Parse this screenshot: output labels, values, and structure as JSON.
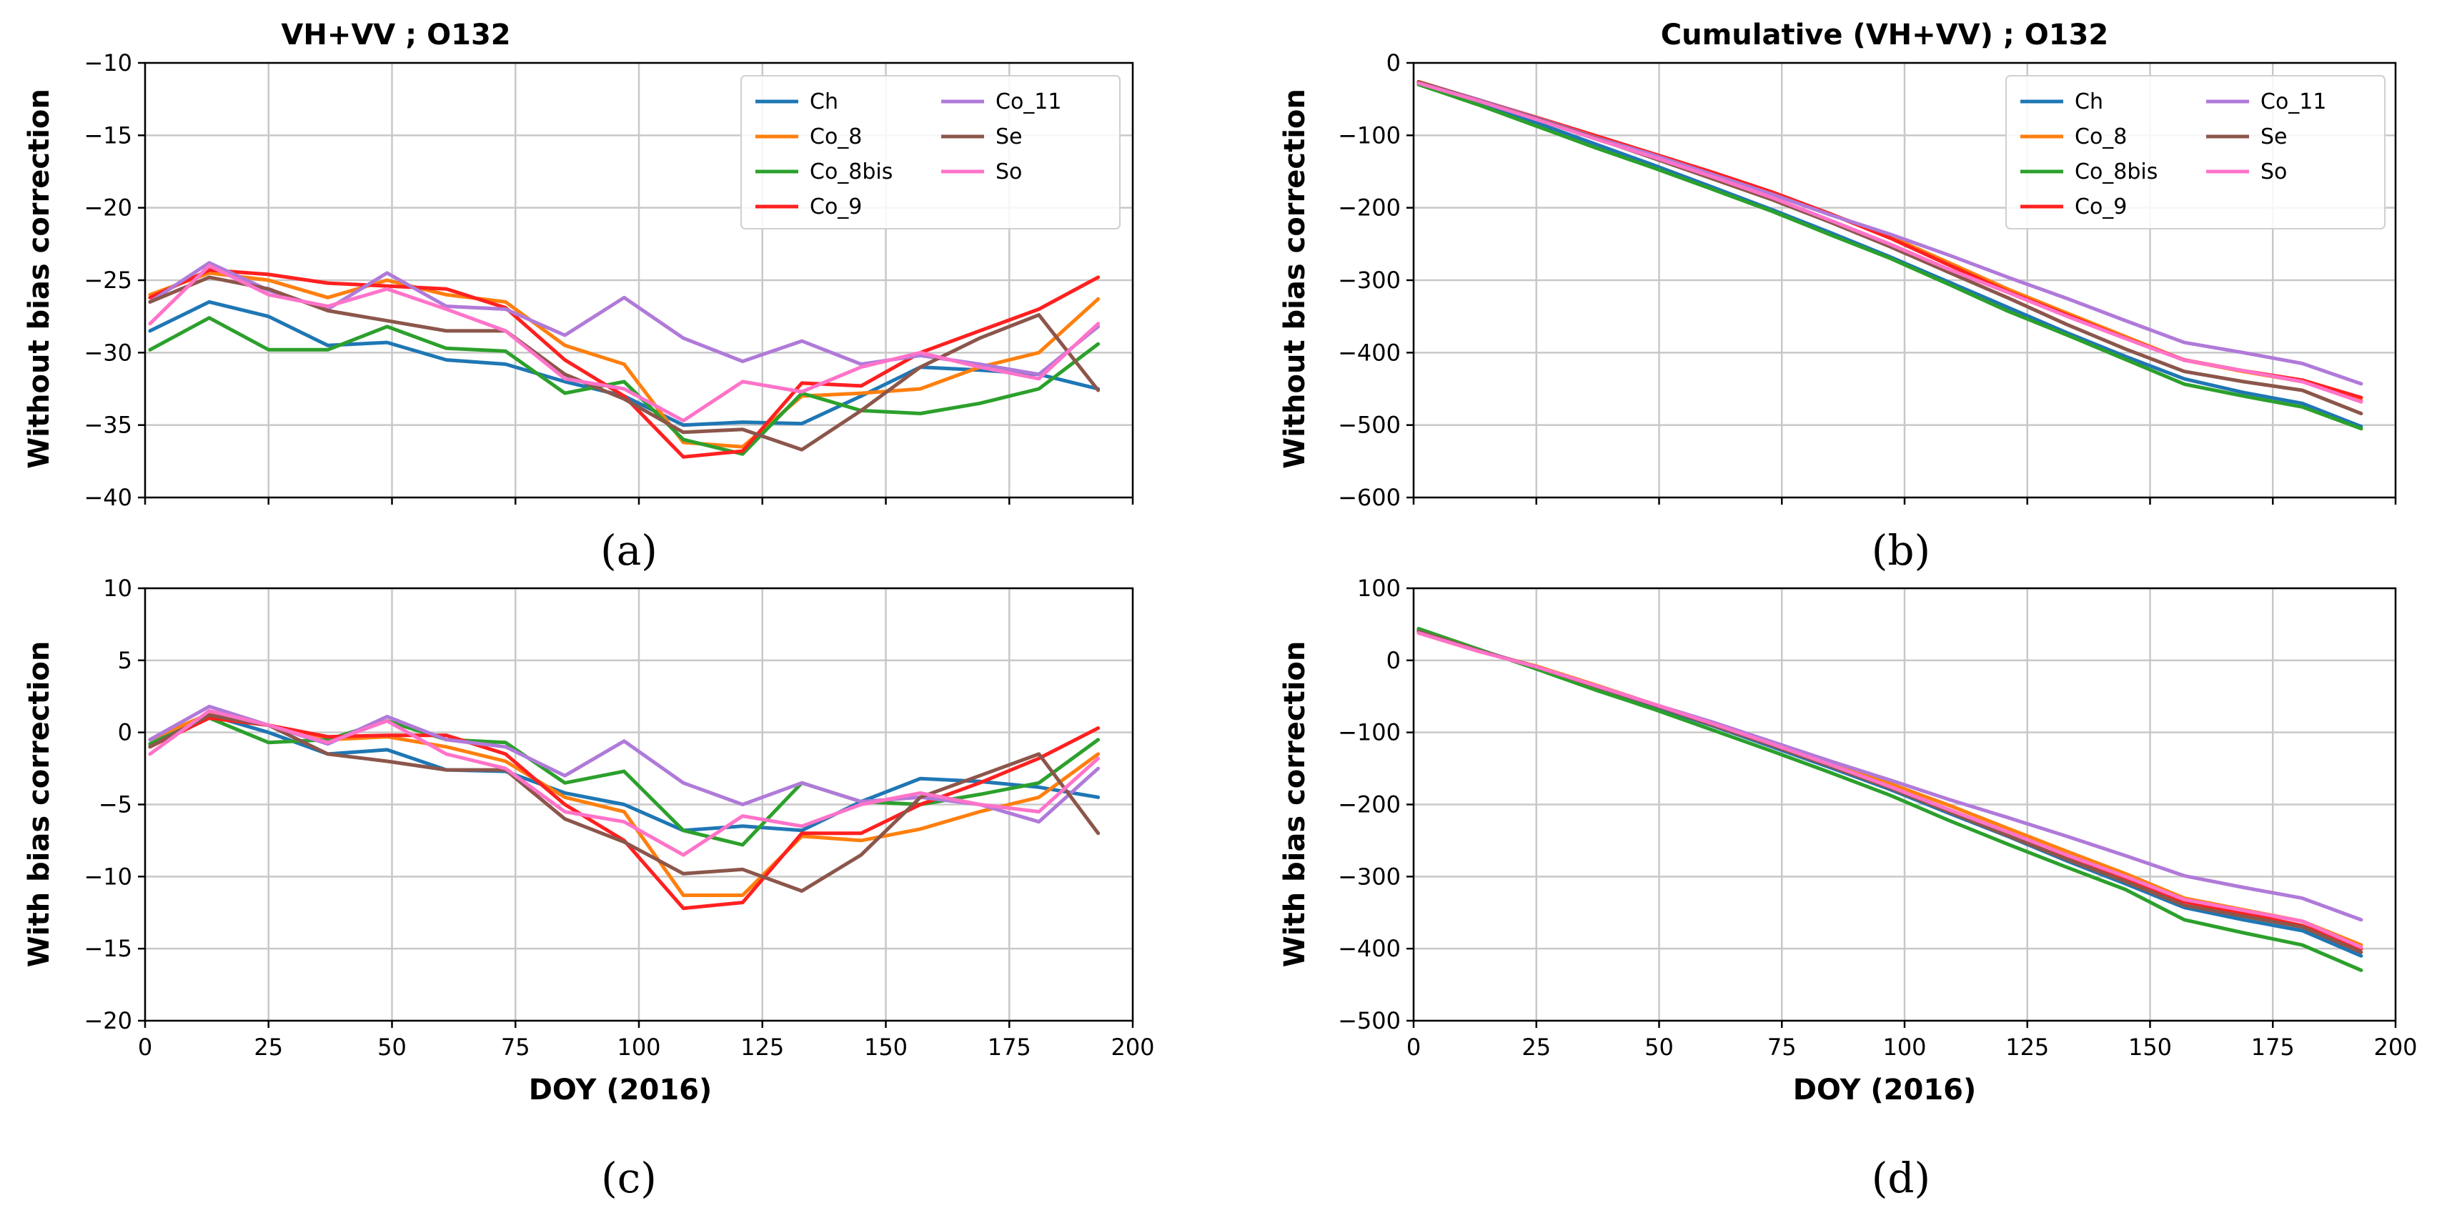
{
  "series_styles": [
    {
      "name": "Ch",
      "color": "#1f77b4"
    },
    {
      "name": "Co_8",
      "color": "#ff7f0e"
    },
    {
      "name": "Co_8bis",
      "color": "#2ca02c"
    },
    {
      "name": "Co_9",
      "color": "#ff2020"
    },
    {
      "name": "Co_11",
      "color": "#b07ad9"
    },
    {
      "name": "Se",
      "color": "#8c564b"
    },
    {
      "name": "So",
      "color": "#ff73c9"
    }
  ],
  "chart_data": [
    {
      "id": "a",
      "type": "line",
      "title": "VH+VV  ; O132",
      "xlabel": "",
      "ylabel": "Without bias correction",
      "caption": "(a)",
      "xlim": [
        0,
        200
      ],
      "ylim": [
        -40,
        -10
      ],
      "xticks": [
        0,
        25,
        50,
        75,
        100,
        125,
        150,
        175,
        200
      ],
      "yticks": [
        -40,
        -35,
        -30,
        -25,
        -20,
        -15,
        -10
      ],
      "show_xtick_labels": false,
      "legend": "top-right",
      "x": [
        1,
        13,
        25,
        37,
        49,
        61,
        73,
        85,
        97,
        109,
        121,
        133,
        145,
        157,
        169,
        181,
        193
      ],
      "series": [
        {
          "name": "Ch",
          "values": [
            -28.5,
            -26.5,
            -27.5,
            -29.5,
            -29.3,
            -30.5,
            -30.8,
            -32.0,
            -33.0,
            -35.0,
            -34.8,
            -34.9,
            -33.0,
            -31.0,
            -31.2,
            -31.5,
            -32.5
          ]
        },
        {
          "name": "Co_8",
          "values": [
            -26.0,
            -24.5,
            -25.0,
            -26.2,
            -25.0,
            -26.0,
            -26.5,
            -29.5,
            -30.8,
            -36.2,
            -36.5,
            -33.0,
            -32.8,
            -32.5,
            -31.0,
            -30.0,
            -26.3
          ]
        },
        {
          "name": "Co_8bis",
          "values": [
            -29.8,
            -27.6,
            -29.8,
            -29.8,
            -28.2,
            -29.7,
            -29.9,
            -32.8,
            -32.0,
            -36.0,
            -37.0,
            -32.8,
            -34.0,
            -34.2,
            -33.5,
            -32.5,
            -29.4
          ]
        },
        {
          "name": "Co_9",
          "values": [
            -26.2,
            -24.3,
            -24.6,
            -25.2,
            -25.4,
            -25.6,
            -26.9,
            -30.5,
            -33.0,
            -37.2,
            -36.8,
            -32.1,
            -32.3,
            -30.0,
            -28.5,
            -27.0,
            -24.8
          ]
        },
        {
          "name": "Co_11",
          "values": [
            -26.5,
            -23.8,
            -25.7,
            -27.0,
            -24.5,
            -26.8,
            -27.0,
            -28.8,
            -26.2,
            -29.0,
            -30.6,
            -29.2,
            -30.8,
            -30.2,
            -30.8,
            -31.5,
            -28.2
          ]
        },
        {
          "name": "Se",
          "values": [
            -26.5,
            -24.8,
            -25.6,
            -27.1,
            -27.8,
            -28.5,
            -28.5,
            -31.5,
            -33.2,
            -35.5,
            -35.3,
            -36.7,
            -34.0,
            -31.0,
            -29.0,
            -27.4,
            -32.6
          ]
        },
        {
          "name": "So",
          "values": [
            -28.0,
            -24.0,
            -26.0,
            -26.8,
            -25.6,
            -27.0,
            -28.5,
            -31.8,
            -32.5,
            -34.7,
            -32.0,
            -32.7,
            -31.0,
            -30.0,
            -31.0,
            -31.8,
            -28.0
          ]
        }
      ]
    },
    {
      "id": "b",
      "type": "line",
      "title": "Cumulative (VH+VV)  ; O132",
      "xlabel": "",
      "ylabel": "Without bias correction",
      "caption": "(b)",
      "xlim": [
        0,
        200
      ],
      "ylim": [
        -600,
        0
      ],
      "xticks": [
        0,
        25,
        50,
        75,
        100,
        125,
        150,
        175,
        200
      ],
      "yticks": [
        -600,
        -500,
        -400,
        -300,
        -200,
        -100,
        0
      ],
      "show_xtick_labels": false,
      "legend": "top-right",
      "x": [
        1,
        13,
        25,
        37,
        49,
        61,
        73,
        85,
        97,
        109,
        121,
        133,
        145,
        157,
        169,
        181,
        193
      ],
      "series": [
        {
          "name": "Ch",
          "values": [
            -28.5,
            -55.0,
            -82.5,
            -112.0,
            -141.3,
            -171.8,
            -202.6,
            -234.6,
            -267.6,
            -302.6,
            -337.4,
            -372.3,
            -405.3,
            -436.3,
            -455.0,
            -470.0,
            -502.0
          ]
        },
        {
          "name": "Co_8",
          "values": [
            -26.0,
            -50.5,
            -75.5,
            -101.7,
            -126.7,
            -152.7,
            -179.2,
            -208.7,
            -239.5,
            -275.7,
            -312.2,
            -345.2,
            -378.0,
            -410.5,
            -426.0,
            -440.0,
            -466.0
          ]
        },
        {
          "name": "Co_8bis",
          "values": [
            -29.8,
            -57.4,
            -87.2,
            -117.0,
            -145.2,
            -174.9,
            -204.8,
            -237.6,
            -269.6,
            -305.6,
            -342.6,
            -375.4,
            -409.4,
            -443.6,
            -460.0,
            -475.0,
            -505.0
          ]
        },
        {
          "name": "Co_9",
          "values": [
            -26.2,
            -50.5,
            -75.1,
            -100.3,
            -125.7,
            -151.3,
            -178.2,
            -208.7,
            -241.7,
            -278.9,
            -315.7,
            -347.8,
            -380.1,
            -410.1,
            -425.0,
            -438.0,
            -462.0
          ]
        },
        {
          "name": "Co_11",
          "values": [
            -26.5,
            -50.3,
            -76.0,
            -103.0,
            -127.5,
            -154.3,
            -181.3,
            -210.1,
            -236.3,
            -265.3,
            -295.9,
            -325.1,
            -355.9,
            -386.1,
            -400.0,
            -415.0,
            -443.0
          ]
        },
        {
          "name": "Se",
          "values": [
            -26.5,
            -51.3,
            -76.9,
            -104.0,
            -131.8,
            -160.3,
            -188.8,
            -220.3,
            -253.5,
            -289.0,
            -324.3,
            -361.0,
            -395.0,
            -426.0,
            -440.0,
            -452.0,
            -484.0
          ]
        },
        {
          "name": "So",
          "values": [
            -28.0,
            -52.0,
            -78.0,
            -104.8,
            -130.4,
            -157.4,
            -185.9,
            -217.7,
            -250.2,
            -284.9,
            -316.9,
            -349.6,
            -380.6,
            -410.6,
            -425.0,
            -440.0,
            -468.0
          ]
        }
      ]
    },
    {
      "id": "c",
      "type": "line",
      "title": "",
      "xlabel": "DOY (2016)",
      "ylabel": "With bias correction",
      "caption": "(c)",
      "xlim": [
        0,
        200
      ],
      "ylim": [
        -20,
        10
      ],
      "xticks": [
        0,
        25,
        50,
        75,
        100,
        125,
        150,
        175,
        200
      ],
      "yticks": [
        -20,
        -15,
        -10,
        -5,
        0,
        5,
        10
      ],
      "show_xtick_labels": true,
      "legend": "none",
      "x": [
        1,
        13,
        25,
        37,
        49,
        61,
        73,
        85,
        97,
        109,
        121,
        133,
        145,
        157,
        169,
        181,
        193
      ],
      "series": [
        {
          "name": "Ch",
          "values": [
            -0.8,
            1.2,
            0.0,
            -1.5,
            -1.2,
            -2.6,
            -2.7,
            -4.2,
            -5.0,
            -6.8,
            -6.5,
            -6.8,
            -4.8,
            -3.2,
            -3.4,
            -3.8,
            -4.5
          ]
        },
        {
          "name": "Co_8",
          "values": [
            -0.5,
            1.3,
            0.5,
            -0.5,
            -0.3,
            -1.0,
            -2.0,
            -4.5,
            -5.5,
            -11.3,
            -11.3,
            -7.2,
            -7.5,
            -6.7,
            -5.5,
            -4.5,
            -1.5
          ]
        },
        {
          "name": "Co_8bis",
          "values": [
            -0.8,
            1.0,
            -0.7,
            -0.5,
            0.8,
            -0.5,
            -0.7,
            -3.5,
            -2.7,
            -6.8,
            -7.8,
            -3.5,
            -4.8,
            -5.0,
            -4.3,
            -3.5,
            -0.5
          ]
        },
        {
          "name": "Co_9",
          "values": [
            -1.0,
            1.0,
            0.5,
            -0.3,
            -0.2,
            -0.2,
            -1.5,
            -5.0,
            -7.5,
            -12.2,
            -11.8,
            -7.0,
            -7.0,
            -5.0,
            -3.5,
            -1.8,
            0.3
          ]
        },
        {
          "name": "Co_11",
          "values": [
            -0.5,
            1.8,
            0.5,
            -0.8,
            1.1,
            -0.5,
            -1.0,
            -3.0,
            -0.6,
            -3.5,
            -5.0,
            -3.5,
            -4.8,
            -4.5,
            -5.0,
            -6.2,
            -2.5
          ]
        },
        {
          "name": "Se",
          "values": [
            -1.0,
            1.2,
            0.5,
            -1.5,
            -2.0,
            -2.6,
            -2.6,
            -6.0,
            -7.6,
            -9.8,
            -9.5,
            -11.0,
            -8.5,
            -4.5,
            -3.0,
            -1.5,
            -7.0
          ]
        },
        {
          "name": "So",
          "values": [
            -1.5,
            1.5,
            0.5,
            -0.7,
            0.8,
            -1.5,
            -2.5,
            -5.5,
            -6.2,
            -8.5,
            -5.8,
            -6.5,
            -5.0,
            -4.2,
            -5.0,
            -5.5,
            -1.8
          ]
        }
      ]
    },
    {
      "id": "d",
      "type": "line",
      "title": "",
      "xlabel": "DOY (2016)",
      "ylabel": "With bias correction",
      "caption": "(d)",
      "xlim": [
        0,
        200
      ],
      "ylim": [
        -500,
        100
      ],
      "xticks": [
        0,
        25,
        50,
        75,
        100,
        125,
        150,
        175,
        200
      ],
      "yticks": [
        -500,
        -400,
        -300,
        -200,
        -100,
        0,
        100
      ],
      "show_xtick_labels": true,
      "legend": "none",
      "x": [
        1,
        13,
        25,
        37,
        49,
        61,
        73,
        85,
        97,
        109,
        121,
        133,
        145,
        157,
        169,
        181,
        193
      ],
      "series": [
        {
          "name": "Ch",
          "values": [
            42,
            15,
            -10,
            -38,
            -64,
            -91,
            -120,
            -149,
            -179,
            -212,
            -244,
            -278,
            -310,
            -343,
            -360,
            -375,
            -410
          ]
        },
        {
          "name": "Co_8",
          "values": [
            38,
            13,
            -8,
            -34,
            -61,
            -88,
            -115,
            -143,
            -171,
            -201,
            -233,
            -265,
            -296,
            -330,
            -346,
            -362,
            -395
          ]
        },
        {
          "name": "Co_8bis",
          "values": [
            44,
            16,
            -12,
            -41,
            -68,
            -97,
            -126,
            -156,
            -187,
            -222,
            -255,
            -287,
            -318,
            -360,
            -378,
            -395,
            -430
          ]
        },
        {
          "name": "Co_9",
          "values": [
            40,
            14,
            -9,
            -35,
            -62,
            -89,
            -117,
            -146,
            -176,
            -208,
            -241,
            -272,
            -302,
            -335,
            -351,
            -368,
            -400
          ]
        },
        {
          "name": "Co_11",
          "values": [
            40,
            14,
            -9,
            -35,
            -61,
            -86,
            -113,
            -140,
            -166,
            -193,
            -218,
            -244,
            -271,
            -299,
            -315,
            -330,
            -360
          ]
        },
        {
          "name": "Se",
          "values": [
            40,
            14,
            -9,
            -36,
            -62,
            -90,
            -118,
            -147,
            -177,
            -210,
            -243,
            -276,
            -307,
            -340,
            -355,
            -370,
            -405
          ]
        },
        {
          "name": "So",
          "values": [
            38,
            13,
            -9,
            -35,
            -61,
            -88,
            -116,
            -145,
            -175,
            -207,
            -238,
            -270,
            -300,
            -332,
            -347,
            -362,
            -398
          ]
        }
      ]
    }
  ]
}
